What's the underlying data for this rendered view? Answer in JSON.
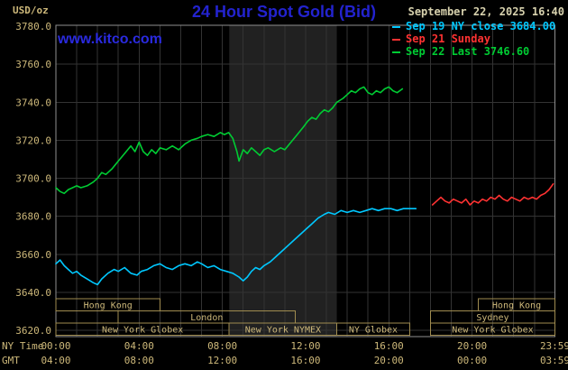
{
  "header": {
    "unit_label": "USD/oz",
    "title": "24 Hour Spot Gold (Bid)",
    "datetime": "September 22, 2025 16:40",
    "watermark": "www.kitco.com"
  },
  "legend": {
    "items": [
      {
        "label": "Sep 19 NY close 3684.00",
        "color": "#00c8ff"
      },
      {
        "label": "Sep 21 Sunday",
        "color": "#ff3232"
      },
      {
        "label": "Sep 22 Last 3746.60",
        "color": "#00cc33"
      }
    ]
  },
  "axes": {
    "x_ny_label": "NY Time",
    "x_gmt_label": "GMT",
    "y_ticks": [
      "3780.0",
      "3760.0",
      "3740.0",
      "3720.0",
      "3700.0",
      "3680.0",
      "3660.0",
      "3640.0",
      "3620.0"
    ],
    "x_ticks": [
      {
        "hour": 0,
        "ny": "00:00",
        "gmt": "04:00"
      },
      {
        "hour": 4,
        "ny": "04:00",
        "gmt": "08:00"
      },
      {
        "hour": 8,
        "ny": "08:00",
        "gmt": "12:00"
      },
      {
        "hour": 12,
        "ny": "12:00",
        "gmt": "16:00"
      },
      {
        "hour": 16,
        "ny": "16:00",
        "gmt": "20:00"
      },
      {
        "hour": 20,
        "ny": "20:00",
        "gmt": "00:00"
      },
      {
        "hour": 23.983,
        "ny": "23:59",
        "gmt": "03:59"
      }
    ]
  },
  "sessions": {
    "rows": [
      {
        "boxes": [
          {
            "label": "Hong Kong",
            "from": 0,
            "to": 5.0
          },
          {
            "label": "Hong Kong",
            "from": 20.3,
            "to": 23.983
          }
        ]
      },
      {
        "boxes": [
          {
            "label": "London",
            "from": 3.0,
            "to": 11.5
          },
          {
            "label": "Sydney",
            "from": 18.0,
            "to": 23.983
          }
        ]
      },
      {
        "boxes": [
          {
            "label": "New York Globex",
            "from": 0,
            "to": 8.33
          },
          {
            "label": "New York NYMEX",
            "from": 8.33,
            "to": 13.5
          },
          {
            "label": "NY Globex",
            "from": 13.5,
            "to": 17.0
          },
          {
            "label": "New York Globex",
            "from": 18.0,
            "to": 23.983
          }
        ]
      }
    ]
  },
  "colors": {
    "background": "#000000",
    "band": "#212121",
    "grid": "#333333",
    "frame": "#8f8f8f",
    "axis_text": "#cdb87a",
    "session_border": "#a08c50",
    "session_text": "#cdb87a"
  },
  "chart_data": {
    "type": "line",
    "title": "24 Hour Spot Gold (Bid)",
    "ylabel": "USD/oz",
    "xlabel": "NY Time (hours)",
    "xlim": [
      0,
      23.983
    ],
    "ylim": [
      3620,
      3780
    ],
    "y_tick_step": 20,
    "grid": true,
    "legend_position": "top-right",
    "shaded_band_hours": [
      8.33,
      13.5
    ],
    "series": [
      {
        "name": "Sep 19 NY close",
        "color": "#00c8ff",
        "close_value": 3684.0,
        "points": [
          [
            0,
            3655
          ],
          [
            0.2,
            3657
          ],
          [
            0.4,
            3654
          ],
          [
            0.6,
            3652
          ],
          [
            0.8,
            3650
          ],
          [
            1,
            3651
          ],
          [
            1.2,
            3649
          ],
          [
            1.5,
            3647
          ],
          [
            1.8,
            3645
          ],
          [
            2,
            3644
          ],
          [
            2.2,
            3647
          ],
          [
            2.5,
            3650
          ],
          [
            2.8,
            3652
          ],
          [
            3,
            3651
          ],
          [
            3.3,
            3653
          ],
          [
            3.6,
            3650
          ],
          [
            3.9,
            3649
          ],
          [
            4.1,
            3651
          ],
          [
            4.4,
            3652
          ],
          [
            4.7,
            3654
          ],
          [
            5,
            3655
          ],
          [
            5.3,
            3653
          ],
          [
            5.6,
            3652
          ],
          [
            5.9,
            3654
          ],
          [
            6.2,
            3655
          ],
          [
            6.5,
            3654
          ],
          [
            6.8,
            3656
          ],
          [
            7,
            3655
          ],
          [
            7.3,
            3653
          ],
          [
            7.6,
            3654
          ],
          [
            7.9,
            3652
          ],
          [
            8.2,
            3651
          ],
          [
            8.5,
            3650
          ],
          [
            8.8,
            3648
          ],
          [
            9,
            3646
          ],
          [
            9.2,
            3648
          ],
          [
            9.4,
            3651
          ],
          [
            9.6,
            3653
          ],
          [
            9.8,
            3652
          ],
          [
            10,
            3654
          ],
          [
            10.3,
            3656
          ],
          [
            10.6,
            3659
          ],
          [
            10.9,
            3662
          ],
          [
            11.2,
            3665
          ],
          [
            11.5,
            3668
          ],
          [
            11.8,
            3671
          ],
          [
            12,
            3673
          ],
          [
            12.3,
            3676
          ],
          [
            12.6,
            3679
          ],
          [
            12.9,
            3681
          ],
          [
            13.1,
            3682
          ],
          [
            13.4,
            3681
          ],
          [
            13.7,
            3683
          ],
          [
            14,
            3682
          ],
          [
            14.3,
            3683
          ],
          [
            14.6,
            3682
          ],
          [
            14.9,
            3683
          ],
          [
            15.2,
            3684
          ],
          [
            15.5,
            3683
          ],
          [
            15.8,
            3684
          ],
          [
            16.1,
            3684
          ],
          [
            16.4,
            3683
          ],
          [
            16.7,
            3684
          ],
          [
            17,
            3684
          ],
          [
            17.3,
            3684
          ]
        ]
      },
      {
        "name": "Sep 21 Sunday",
        "color": "#ff3232",
        "points": [
          [
            18.1,
            3686
          ],
          [
            18.3,
            3688
          ],
          [
            18.5,
            3690
          ],
          [
            18.7,
            3688
          ],
          [
            18.9,
            3687
          ],
          [
            19.1,
            3689
          ],
          [
            19.3,
            3688
          ],
          [
            19.5,
            3687
          ],
          [
            19.7,
            3689
          ],
          [
            19.9,
            3686
          ],
          [
            20.1,
            3688
          ],
          [
            20.3,
            3687
          ],
          [
            20.5,
            3689
          ],
          [
            20.7,
            3688
          ],
          [
            20.9,
            3690
          ],
          [
            21.1,
            3689
          ],
          [
            21.3,
            3691
          ],
          [
            21.5,
            3689
          ],
          [
            21.7,
            3688
          ],
          [
            21.9,
            3690
          ],
          [
            22.1,
            3689
          ],
          [
            22.3,
            3688
          ],
          [
            22.5,
            3690
          ],
          [
            22.7,
            3689
          ],
          [
            22.9,
            3690
          ],
          [
            23.1,
            3689
          ],
          [
            23.3,
            3691
          ],
          [
            23.5,
            3692
          ],
          [
            23.7,
            3694
          ],
          [
            23.9,
            3697
          ]
        ]
      },
      {
        "name": "Sep 22 Last",
        "color": "#00cc33",
        "last_value": 3746.6,
        "points": [
          [
            0,
            3695
          ],
          [
            0.2,
            3693
          ],
          [
            0.4,
            3692
          ],
          [
            0.6,
            3694
          ],
          [
            0.8,
            3695
          ],
          [
            1,
            3696
          ],
          [
            1.2,
            3695
          ],
          [
            1.5,
            3696
          ],
          [
            1.8,
            3698
          ],
          [
            2,
            3700
          ],
          [
            2.2,
            3703
          ],
          [
            2.4,
            3702
          ],
          [
            2.7,
            3705
          ],
          [
            3,
            3709
          ],
          [
            3.3,
            3713
          ],
          [
            3.6,
            3717
          ],
          [
            3.8,
            3714
          ],
          [
            4,
            3719
          ],
          [
            4.2,
            3714
          ],
          [
            4.4,
            3712
          ],
          [
            4.6,
            3715
          ],
          [
            4.8,
            3713
          ],
          [
            5,
            3716
          ],
          [
            5.3,
            3715
          ],
          [
            5.6,
            3717
          ],
          [
            5.9,
            3715
          ],
          [
            6.2,
            3718
          ],
          [
            6.5,
            3720
          ],
          [
            6.8,
            3721
          ],
          [
            7,
            3722
          ],
          [
            7.3,
            3723
          ],
          [
            7.6,
            3722
          ],
          [
            7.9,
            3724
          ],
          [
            8.1,
            3723
          ],
          [
            8.3,
            3724
          ],
          [
            8.5,
            3721
          ],
          [
            8.7,
            3714
          ],
          [
            8.8,
            3709
          ],
          [
            9,
            3715
          ],
          [
            9.2,
            3713
          ],
          [
            9.4,
            3716
          ],
          [
            9.6,
            3714
          ],
          [
            9.8,
            3712
          ],
          [
            10,
            3715
          ],
          [
            10.2,
            3716
          ],
          [
            10.5,
            3714
          ],
          [
            10.8,
            3716
          ],
          [
            11,
            3715
          ],
          [
            11.3,
            3719
          ],
          [
            11.6,
            3723
          ],
          [
            11.9,
            3727
          ],
          [
            12.1,
            3730
          ],
          [
            12.3,
            3732
          ],
          [
            12.5,
            3731
          ],
          [
            12.7,
            3734
          ],
          [
            12.9,
            3736
          ],
          [
            13.1,
            3735
          ],
          [
            13.3,
            3737
          ],
          [
            13.5,
            3740
          ],
          [
            13.8,
            3742
          ],
          [
            14,
            3744
          ],
          [
            14.2,
            3746
          ],
          [
            14.4,
            3745
          ],
          [
            14.6,
            3747
          ],
          [
            14.8,
            3748
          ],
          [
            15,
            3745
          ],
          [
            15.2,
            3744
          ],
          [
            15.4,
            3746
          ],
          [
            15.6,
            3745
          ],
          [
            15.8,
            3747
          ],
          [
            16,
            3748
          ],
          [
            16.2,
            3746
          ],
          [
            16.4,
            3745
          ],
          [
            16.65,
            3747
          ]
        ]
      }
    ]
  }
}
